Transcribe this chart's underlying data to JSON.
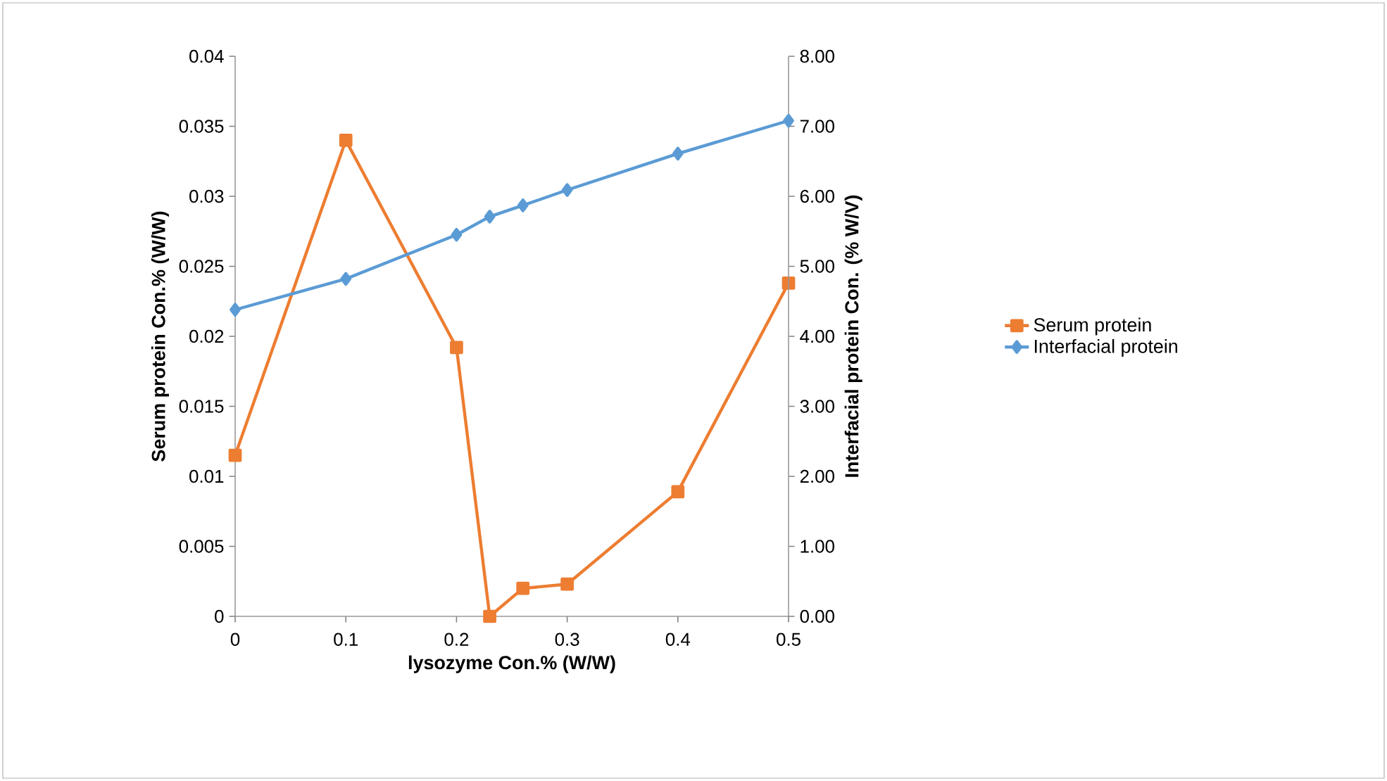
{
  "chart_data": {
    "type": "line",
    "xlabel": "lysozyme Con.% (W/W)",
    "ylabel": "Serum protein Con.% (W/W)",
    "y2label": "Interfacial protein Con. (% W/V)",
    "xlim": [
      0,
      0.5
    ],
    "xticks": [
      0,
      0.1,
      0.2,
      0.3,
      0.4,
      0.5
    ],
    "ylim": [
      0,
      0.04
    ],
    "yticks": [
      0,
      0.005,
      0.01,
      0.015,
      0.02,
      0.025,
      0.03,
      0.035,
      0.04
    ],
    "y2lim": [
      0,
      8
    ],
    "y2ticks": [
      {
        "value": 0,
        "label": "0.00"
      },
      {
        "value": 1,
        "label": "1.00"
      },
      {
        "value": 2,
        "label": "2.00"
      },
      {
        "value": 3,
        "label": "3.00"
      },
      {
        "value": 4,
        "label": "4.00"
      },
      {
        "value": 5,
        "label": "5.00"
      },
      {
        "value": 6,
        "label": "6.00"
      },
      {
        "value": 7,
        "label": "7.00"
      },
      {
        "value": 8,
        "label": "8.00"
      }
    ],
    "x": [
      0,
      0.1,
      0.2,
      0.23,
      0.26,
      0.3,
      0.4,
      0.5
    ],
    "legend": "right",
    "grid": false,
    "line_style": "solid",
    "series": [
      {
        "name": "Serum protein",
        "color": "#ed7d31",
        "marker": "square",
        "values": [
          0.0115,
          0.034,
          0.0192,
          0,
          0.002,
          0.0023,
          0.0089,
          0.0238
        ]
      },
      {
        "name": "Interfacial protein",
        "color": "#5b9bd5",
        "marker": "diamond",
        "axis": "y2",
        "values": [
          4.38,
          4.82,
          5.45,
          5.71,
          5.87,
          6.09,
          6.61,
          7.08
        ]
      }
    ]
  }
}
